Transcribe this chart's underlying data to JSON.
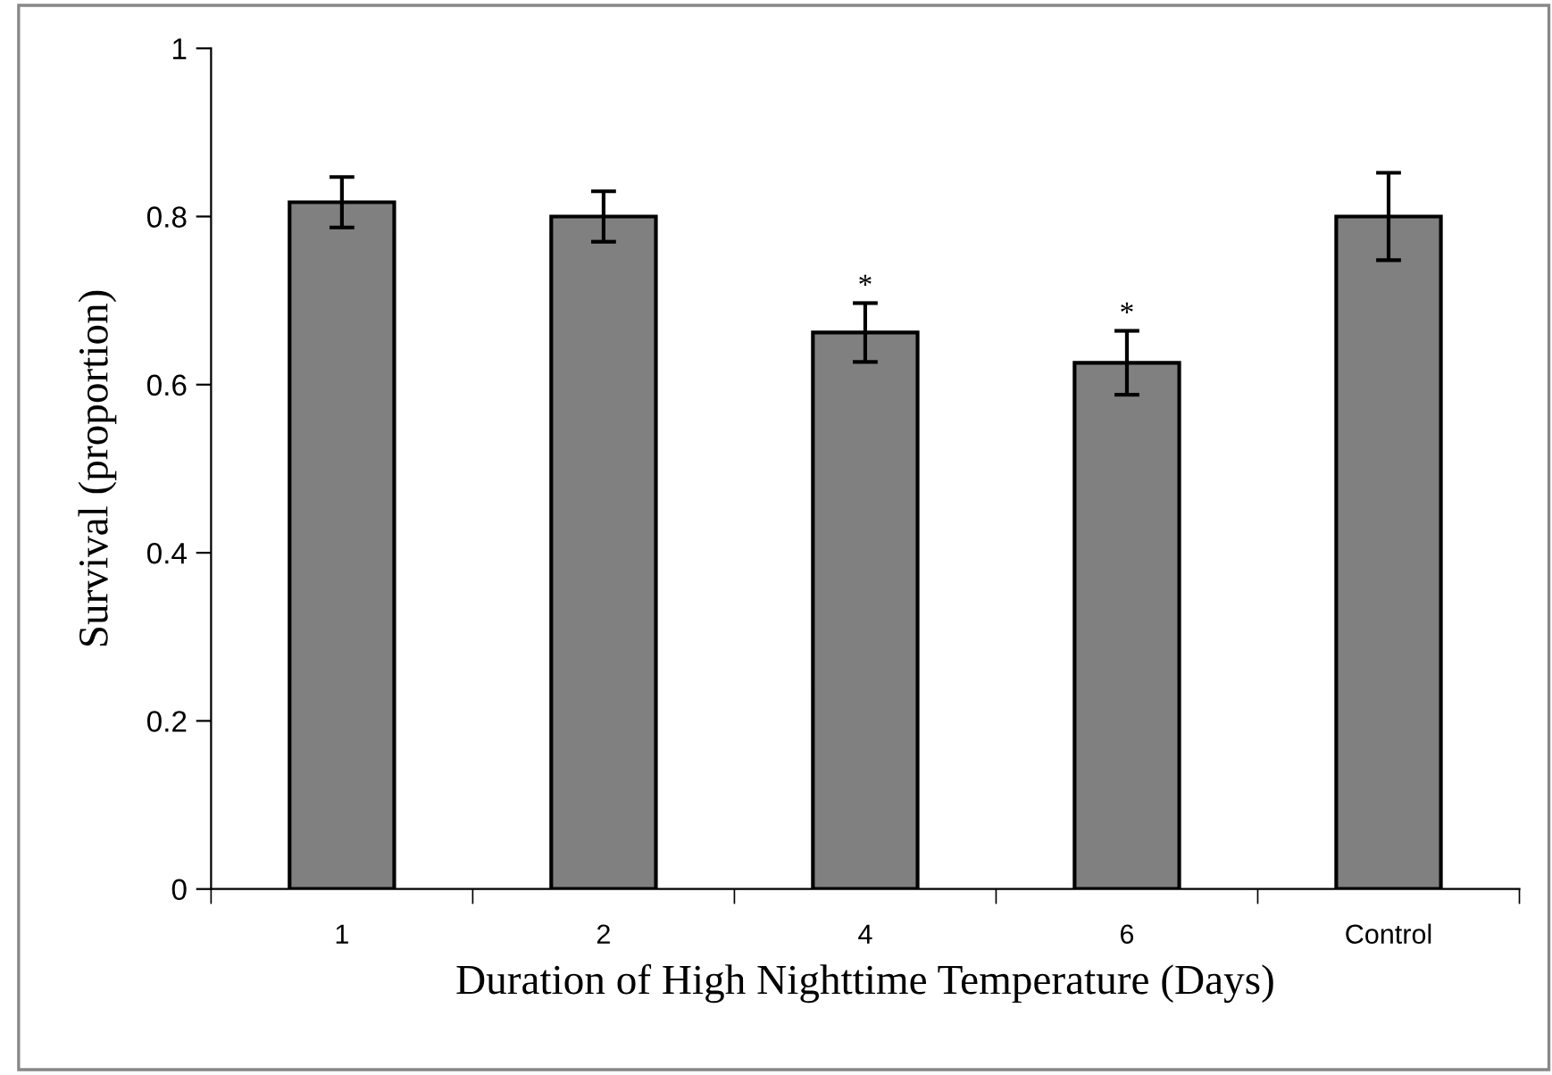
{
  "chart_data": {
    "type": "bar",
    "xlabel": "Duration of High Nighttime Temperature (Days)",
    "ylabel": "Survival (proportion)",
    "categories": [
      "1",
      "2",
      "4",
      "6",
      "Control"
    ],
    "values": [
      0.817,
      0.8,
      0.662,
      0.626,
      0.8
    ],
    "errors": [
      0.03,
      0.03,
      0.035,
      0.038,
      0.052
    ],
    "color": "#808080",
    "ylim": [
      0,
      1
    ],
    "yticks": [
      0,
      0.2,
      0.4,
      0.6,
      0.8,
      1
    ],
    "grid": false,
    "legend": false,
    "annotations": [
      {
        "text": "*",
        "x": "4",
        "y": 0.697
      },
      {
        "text": "*",
        "x": "6",
        "y": 0.664
      }
    ]
  }
}
